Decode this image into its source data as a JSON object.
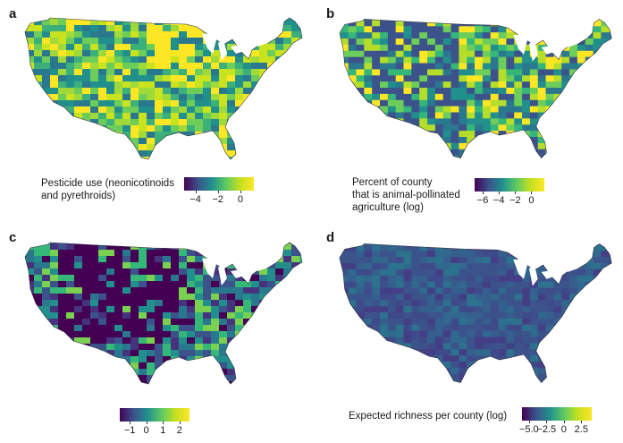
{
  "panels": [
    {
      "id": "a",
      "label": "a",
      "legend_title_lines": [
        "Pesticide use (neonicotinoids",
        "and pyrethroids)"
      ],
      "ticks": [
        {
          "label": "−4",
          "value": -4
        },
        {
          "label": "−2",
          "value": -2
        },
        {
          "label": "0",
          "value": 0
        }
      ],
      "range": [
        -5,
        1.2
      ],
      "palette": [
        "#440154",
        "#3b528b",
        "#21908d",
        "#5dc963",
        "#c5e021",
        "#fde725"
      ],
      "map_palette": [
        "#21908d",
        "#3bb07a",
        "#6ccd5a",
        "#9fda3a",
        "#c9e31f",
        "#fde725",
        "#2a788e"
      ]
    },
    {
      "id": "b",
      "label": "b",
      "legend_title_lines": [
        "Percent of county",
        "that is animal-pollinated",
        "agriculture (log)"
      ],
      "ticks": [
        {
          "label": "−6",
          "value": -6
        },
        {
          "label": "−4",
          "value": -4
        },
        {
          "label": "−2",
          "value": -2
        },
        {
          "label": "0",
          "value": 0
        }
      ],
      "range": [
        -7,
        1.6
      ],
      "palette": [
        "#440154",
        "#3b528b",
        "#21908d",
        "#5dc963",
        "#c5e021",
        "#fde725"
      ],
      "map_palette": [
        "#2a788e",
        "#21908d",
        "#35b779",
        "#6ccd5a",
        "#b5de2b",
        "#3b528b",
        "#fde725"
      ]
    },
    {
      "id": "c",
      "label": "c",
      "legend_title_lines": [],
      "ticks": [
        {
          "label": "−1",
          "value": -1
        },
        {
          "label": "0",
          "value": 0
        },
        {
          "label": "1",
          "value": 1
        },
        {
          "label": "2",
          "value": 2
        }
      ],
      "range": [
        -1.6,
        2.6
      ],
      "palette": [
        "#440154",
        "#3b528b",
        "#21908d",
        "#5dc963",
        "#c5e021",
        "#fde725"
      ],
      "map_palette": [
        "#3b528b",
        "#2a788e",
        "#21908d",
        "#440154",
        "#35b779",
        "#46337e",
        "#7ad151"
      ]
    },
    {
      "id": "d",
      "label": "d",
      "legend_title_lines": [
        "Expected richness per county (log)"
      ],
      "ticks": [
        {
          "label": "−5.0",
          "value": -5.0
        },
        {
          "label": "−2.5",
          "value": -2.5
        },
        {
          "label": "0",
          "value": 0
        },
        {
          "label": "2.5",
          "value": 2.5
        }
      ],
      "range": [
        -6,
        4
      ],
      "palette": [
        "#440154",
        "#3b528b",
        "#21908d",
        "#5dc963",
        "#c5e021",
        "#fde725"
      ],
      "map_palette": [
        "#3b528b",
        "#3e4a89",
        "#31688e",
        "#433e85",
        "#2c728e",
        "#3b528b",
        "#355f8d"
      ]
    }
  ]
}
